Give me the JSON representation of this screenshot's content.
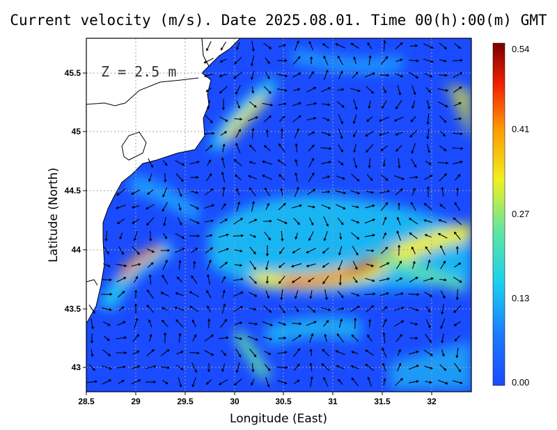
{
  "title": "Current velocity (m/s). Date 2025.08.01. Time 00(h):00(m) GMT",
  "depth_label": "Z  =  2.5  m",
  "xlabel": "Longitude (East)",
  "ylabel": "Latitude (North)",
  "lon_range": [
    28.5,
    32.4
  ],
  "lat_range": [
    42.8,
    45.8
  ],
  "x_ticks": [
    "28.5",
    "29",
    "29.5",
    "30",
    "30.5",
    "31",
    "31.5",
    "32"
  ],
  "y_ticks": [
    "43",
    "43.5",
    "44",
    "44.5",
    "45",
    "45.5"
  ],
  "colorbar": {
    "min": 0.0,
    "max": 0.54,
    "ticks": [
      "0.54",
      "0.41",
      "0.27",
      "0.13",
      "0.00"
    ],
    "colors": [
      "#1a4bff",
      "#1a9cff",
      "#1ee6e6",
      "#7fe07f",
      "#f5f21a",
      "#ff8c00",
      "#f02000",
      "#7a0000"
    ]
  },
  "colors": {
    "land": "#ffffff",
    "sea_base": "#1a4bff",
    "coastline": "#000000",
    "arrows": "#000000"
  }
}
